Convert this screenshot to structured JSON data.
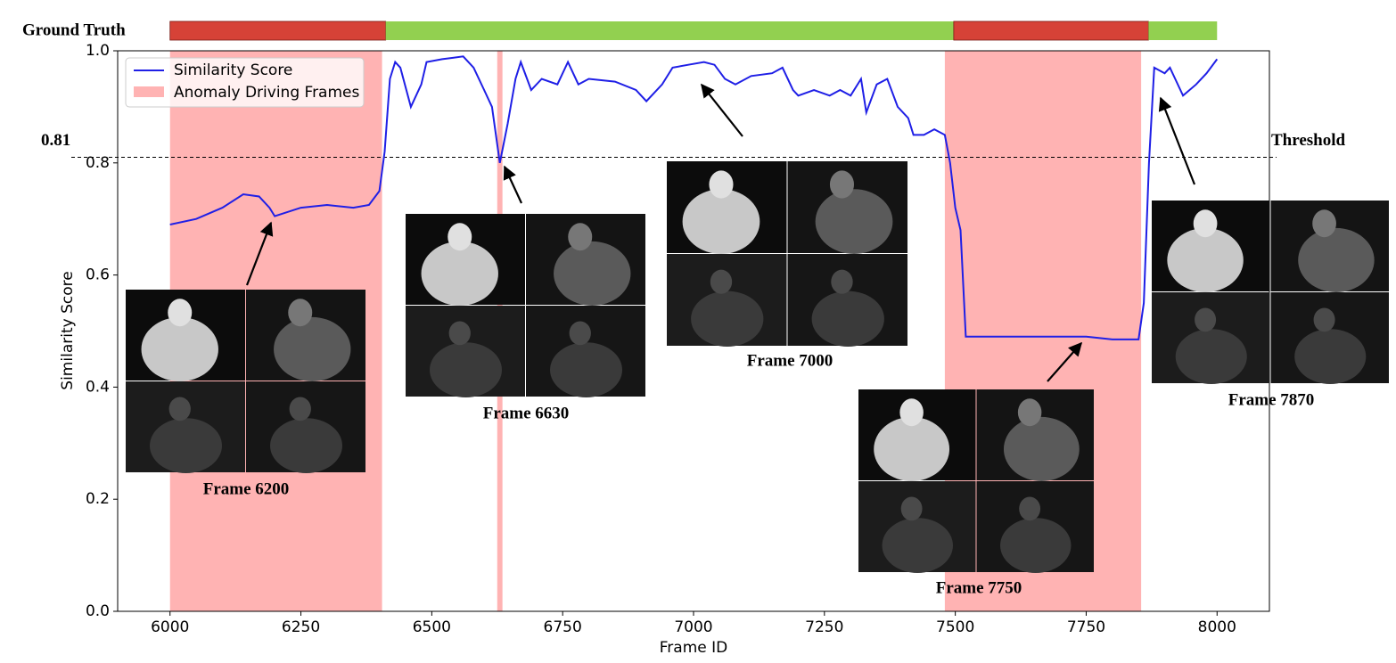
{
  "chart_data": {
    "type": "line",
    "xlabel": "Frame ID",
    "ylabel": "Similarity Score",
    "xlim": [
      5900,
      8100
    ],
    "ylim": [
      0,
      1
    ],
    "xticks": [
      6000,
      6250,
      6500,
      6750,
      7000,
      7250,
      7500,
      7750,
      8000
    ],
    "yticks": [
      {
        "value": 0,
        "label": "0.0"
      },
      0.2,
      0.4,
      0.6,
      0.8,
      {
        "value": 1,
        "label": "1.0"
      }
    ],
    "legend": "upper left",
    "x": [
      6000,
      6050,
      6100,
      6140,
      6170,
      6190,
      6200,
      6250,
      6300,
      6350,
      6380,
      6400,
      6410,
      6420,
      6430,
      6440,
      6460,
      6480,
      6490,
      6520,
      6560,
      6580,
      6600,
      6615,
      6630,
      6645,
      6660,
      6670,
      6690,
      6710,
      6740,
      6760,
      6780,
      6800,
      6850,
      6890,
      6910,
      6940,
      6960,
      6990,
      7020,
      7040,
      7060,
      7080,
      7110,
      7150,
      7170,
      7190,
      7200,
      7230,
      7260,
      7280,
      7300,
      7320,
      7330,
      7350,
      7370,
      7390,
      7410,
      7420,
      7440,
      7460,
      7480,
      7490,
      7500,
      7510,
      7520,
      7540,
      7600,
      7700,
      7750,
      7800,
      7850,
      7860,
      7870,
      7880,
      7900,
      7910,
      7920,
      7935,
      7960,
      7980,
      8000
    ],
    "series": [
      {
        "name": "Similarity Score",
        "color": "#1f1fe6",
        "values": [
          0.69,
          0.7,
          0.72,
          0.744,
          0.74,
          0.72,
          0.705,
          0.72,
          0.725,
          0.72,
          0.725,
          0.75,
          0.82,
          0.95,
          0.98,
          0.97,
          0.9,
          0.94,
          0.98,
          0.985,
          0.99,
          0.97,
          0.93,
          0.9,
          0.8,
          0.87,
          0.95,
          0.98,
          0.93,
          0.95,
          0.94,
          0.98,
          0.94,
          0.95,
          0.945,
          0.93,
          0.91,
          0.94,
          0.97,
          0.975,
          0.98,
          0.975,
          0.95,
          0.94,
          0.955,
          0.96,
          0.97,
          0.93,
          0.92,
          0.93,
          0.92,
          0.93,
          0.92,
          0.95,
          0.89,
          0.94,
          0.95,
          0.9,
          0.88,
          0.85,
          0.85,
          0.86,
          0.85,
          0.8,
          0.72,
          0.68,
          0.49,
          0.49,
          0.49,
          0.49,
          0.49,
          0.485,
          0.485,
          0.55,
          0.8,
          0.97,
          0.96,
          0.97,
          0.95,
          0.92,
          0.94,
          0.96,
          0.985
        ]
      }
    ],
    "shaded": {
      "name": "Anomaly Driving Frames",
      "color": "#ffb3b3",
      "spans": [
        [
          6000,
          6405
        ],
        [
          6625,
          6635
        ],
        [
          7480,
          7855
        ]
      ]
    },
    "threshold": {
      "value": 0.81,
      "label": "Threshold"
    },
    "ground_truth": {
      "label": "Ground Truth",
      "segments": [
        {
          "start": 6000,
          "end": 6412,
          "color": "#d64237"
        },
        {
          "start": 6412,
          "end": 7497,
          "color": "#92d050"
        },
        {
          "start": 7497,
          "end": 7869,
          "color": "#d64237"
        },
        {
          "start": 7869,
          "end": 8000,
          "color": "#92d050"
        }
      ]
    },
    "annotations": [
      {
        "text": "Frame 6200"
      },
      {
        "text": "Frame 6630"
      },
      {
        "text": "Frame 7000"
      },
      {
        "text": "Frame 7750"
      },
      {
        "text": "Frame 7870"
      }
    ]
  }
}
